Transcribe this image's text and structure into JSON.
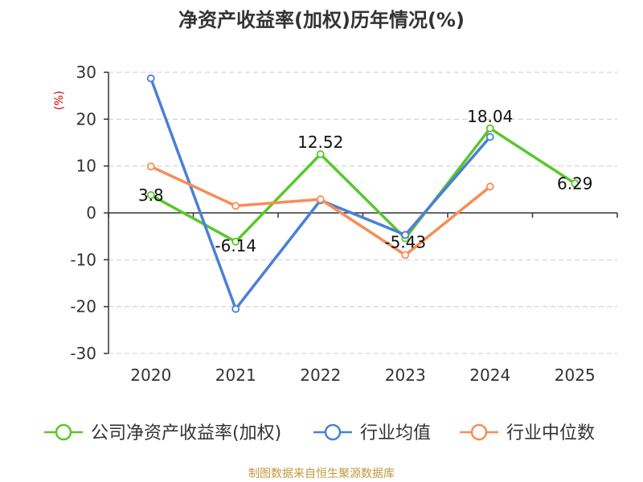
{
  "chart_data": {
    "type": "line",
    "title": "净资产收益率(加权)历年情况(%)",
    "ylabel": "(%)",
    "xlabel": "",
    "categories": [
      "2020",
      "2021",
      "2022",
      "2023",
      "2024",
      "2025"
    ],
    "ylim": [
      -30,
      30
    ],
    "yticks": [
      30,
      20,
      10,
      0,
      -10,
      -20,
      -30
    ],
    "grid": true,
    "legend_position": "bottom",
    "series": [
      {
        "name": "公司净资产收益率(加权)",
        "color": "#5ac729",
        "values": [
          3.8,
          -6.14,
          12.52,
          -5.43,
          18.04,
          6.29
        ],
        "labels": [
          "3.8",
          "-6.14",
          "12.52",
          "-5.43",
          "18.04",
          "6.29"
        ]
      },
      {
        "name": "行业均值",
        "color": "#4a7fd8",
        "values": [
          28.7,
          -20.5,
          2.7,
          -4.7,
          16.2,
          null
        ]
      },
      {
        "name": "行业中位数",
        "color": "#f78d55",
        "values": [
          9.9,
          1.5,
          2.9,
          -9.0,
          5.6,
          null
        ]
      }
    ],
    "source": "制图数据来自恒生聚源数据库"
  }
}
